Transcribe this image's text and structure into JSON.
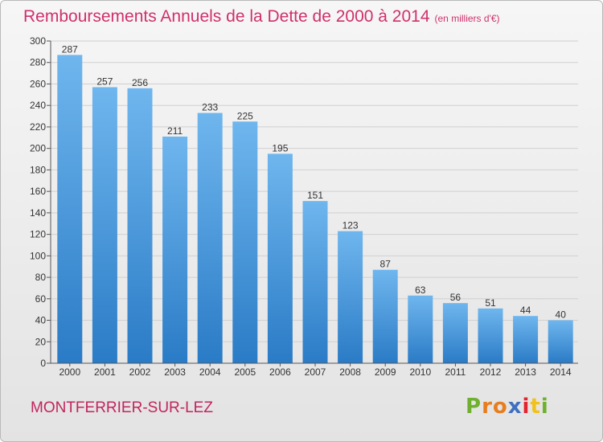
{
  "header": {
    "title": "Remboursements Annuels de la Dette de 2000 à 2014",
    "unit": "(en milliers d'€)"
  },
  "footer": {
    "place": "MONTFERRIER-SUR-LEZ",
    "logo_letters": [
      "P",
      "r",
      "o",
      "x",
      "i",
      "t",
      "i"
    ],
    "logo_colors": [
      "#6fb02e",
      "#e87d1e",
      "#e87d1e",
      "#3d6fc2",
      "#e2242f",
      "#f2c11c",
      "#6fb02e"
    ]
  },
  "colors": {
    "bar_top": "#6fb6ee",
    "bar_bottom": "#2a7bc6",
    "grid": "#d0d0d0",
    "axis": "#555555",
    "title": "#d0306b"
  },
  "chart_data": {
    "type": "bar",
    "categories": [
      "2000",
      "2001",
      "2002",
      "2003",
      "2004",
      "2005",
      "2006",
      "2007",
      "2008",
      "2009",
      "2010",
      "2011",
      "2012",
      "2013",
      "2014"
    ],
    "values": [
      287,
      257,
      256,
      211,
      233,
      225,
      195,
      151,
      123,
      87,
      63,
      56,
      51,
      44,
      40
    ],
    "title": "Remboursements Annuels de la Dette de 2000 à 2014",
    "ylim": [
      0,
      300
    ],
    "yticks": [
      0,
      20,
      40,
      60,
      80,
      100,
      120,
      140,
      160,
      180,
      200,
      220,
      240,
      260,
      280,
      300
    ],
    "grid": true,
    "data_labels": true
  }
}
